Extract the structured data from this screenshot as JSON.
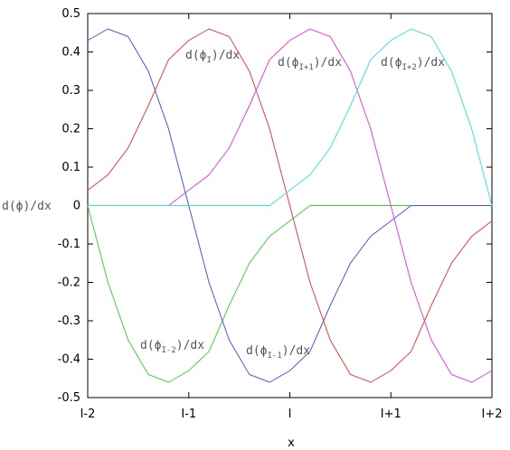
{
  "chart_data": {
    "type": "line",
    "x": [
      -2,
      -1.8,
      -1.6,
      -1.4,
      -1.2,
      -1,
      -0.8,
      -0.6,
      -0.4,
      -0.2,
      0,
      0.2,
      0.4,
      0.6,
      0.8,
      1,
      1.2,
      1.4,
      1.6,
      1.8,
      2
    ],
    "xlabel": "x",
    "ylabel": "d(ϕ)/dx",
    "xlim": [
      -2,
      2
    ],
    "xticks": [
      {
        "value": -2,
        "label": "I-2"
      },
      {
        "value": -1,
        "label": "I-1"
      },
      {
        "value": 0,
        "label": "I"
      },
      {
        "value": 1,
        "label": "I+1"
      },
      {
        "value": 2,
        "label": "I+2"
      }
    ],
    "ylim": [
      -0.5,
      0.5
    ],
    "yticks": [
      -0.5,
      -0.4,
      -0.3,
      -0.2,
      -0.1,
      0,
      0.1,
      0.2,
      0.3,
      0.4,
      0.5
    ],
    "grid": false,
    "series": [
      {
        "name": [
          "d(ϕ",
          "I-2",
          ")/dx"
        ],
        "color": "#40d040",
        "values": [
          0,
          -0.2,
          -0.35,
          -0.44,
          -0.46,
          -0.43,
          -0.38,
          -0.26,
          -0.15,
          -0.08,
          -0.04,
          0,
          0,
          0,
          0,
          0,
          0,
          0,
          0,
          0,
          0
        ]
      },
      {
        "name": [
          "d(ϕ",
          "I-1",
          ")/dx"
        ],
        "color": "#5050e0",
        "values": [
          0.43,
          0.46,
          0.44,
          0.35,
          0.2,
          0,
          -0.2,
          -0.35,
          -0.44,
          -0.46,
          -0.43,
          -0.38,
          -0.26,
          -0.15,
          -0.08,
          -0.04,
          0,
          0,
          0,
          0,
          0
        ]
      },
      {
        "name": [
          "d(ϕ",
          "I",
          ")/dx"
        ],
        "color": "#e04040",
        "values": [
          0.04,
          0.08,
          0.15,
          0.26,
          0.38,
          0.43,
          0.46,
          0.44,
          0.35,
          0.2,
          0,
          -0.2,
          -0.35,
          -0.44,
          -0.46,
          -0.43,
          -0.38,
          -0.26,
          -0.15,
          -0.08,
          -0.04
        ]
      },
      {
        "name": [
          "d(ϕ",
          "I+1",
          ")/dx"
        ],
        "color": "#e040e0",
        "values": [
          0,
          0,
          0,
          0,
          0,
          0.04,
          0.08,
          0.15,
          0.26,
          0.38,
          0.43,
          0.46,
          0.44,
          0.35,
          0.2,
          0,
          -0.2,
          -0.35,
          -0.44,
          -0.46,
          -0.43
        ]
      },
      {
        "name": [
          "d(ϕ",
          "I+2",
          ")/dx"
        ],
        "color": "#40e0e0",
        "values": [
          0,
          0,
          0,
          0,
          0,
          0,
          0,
          0,
          0,
          0,
          0.04,
          0.08,
          0.15,
          0.26,
          0.38,
          0.43,
          0.46,
          0.44,
          0.35,
          0.2,
          0
        ]
      }
    ]
  }
}
